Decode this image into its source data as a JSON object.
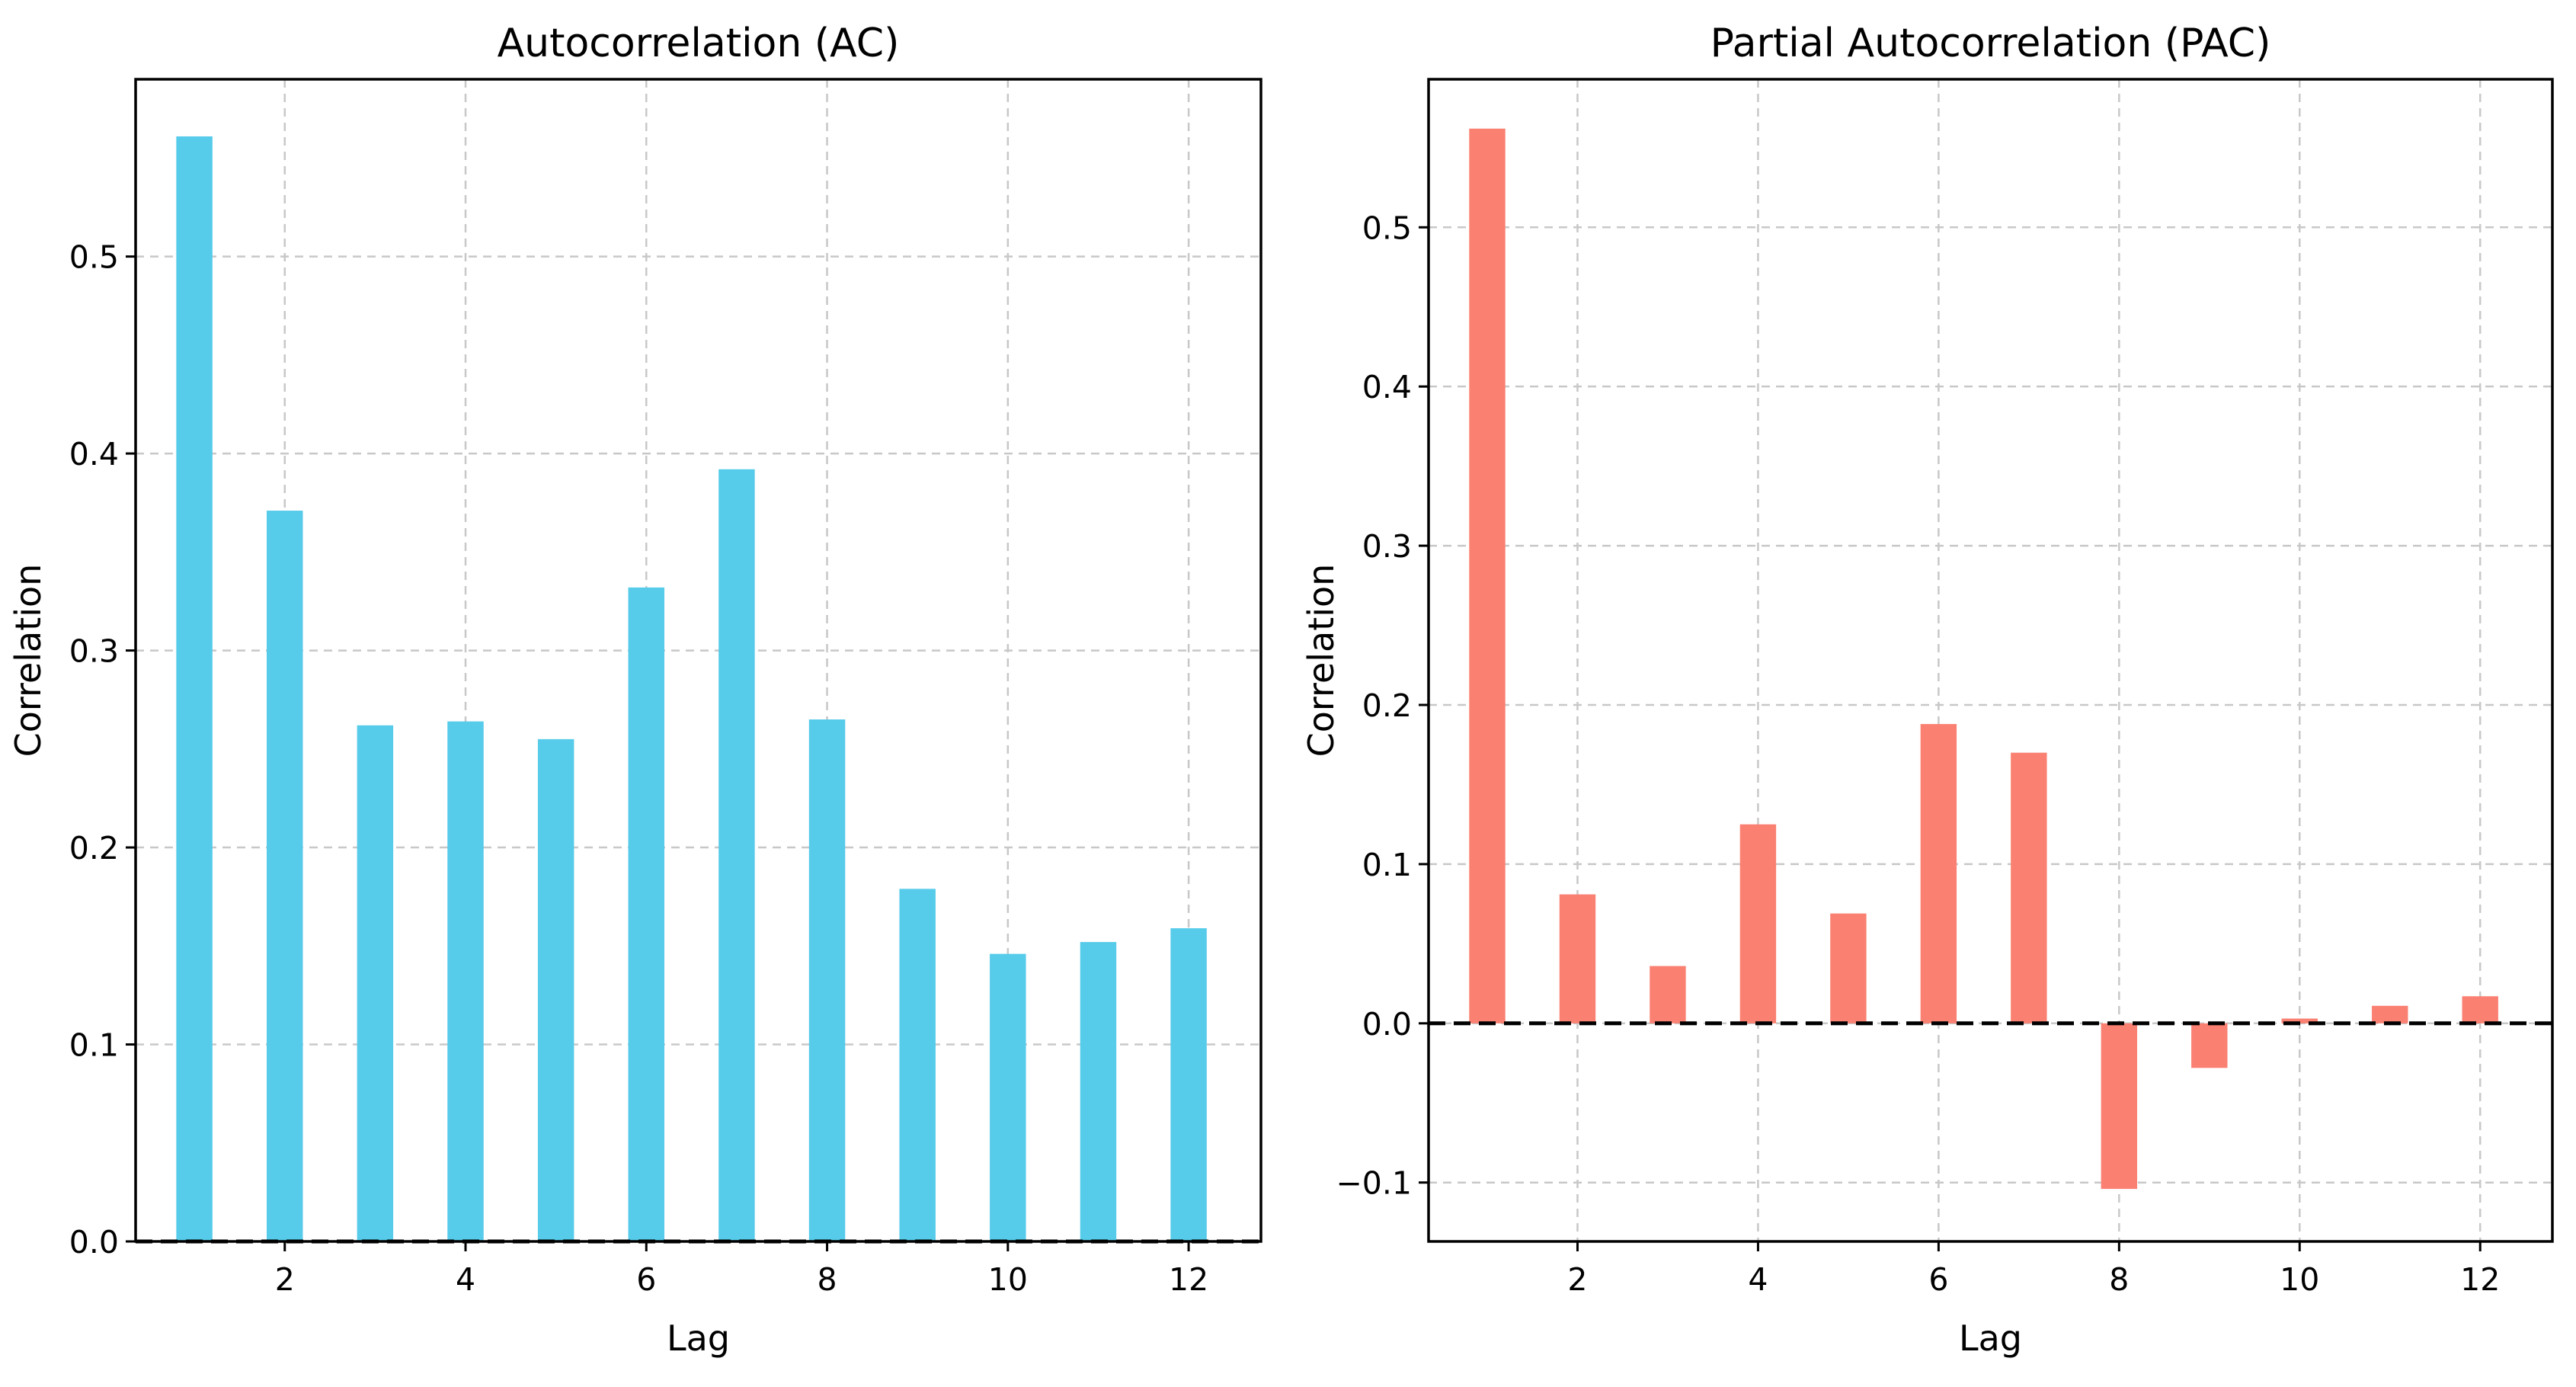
{
  "chart_data": [
    {
      "type": "bar",
      "title": "Autocorrelation (AC)",
      "xlabel": "Lag",
      "ylabel": "Correlation",
      "color": "#56cbea",
      "x": [
        1,
        2,
        3,
        4,
        5,
        6,
        7,
        8,
        9,
        10,
        11,
        12
      ],
      "values": [
        0.561,
        0.371,
        0.262,
        0.264,
        0.255,
        0.332,
        0.392,
        0.265,
        0.179,
        0.146,
        0.152,
        0.159
      ],
      "xticks": [
        2,
        4,
        6,
        8,
        10,
        12
      ],
      "xtick_labels": [
        "2",
        "4",
        "6",
        "8",
        "10",
        "12"
      ],
      "yticks": [
        0.0,
        0.1,
        0.2,
        0.3,
        0.4,
        0.5
      ],
      "ytick_labels": [
        "0.0",
        "0.1",
        "0.2",
        "0.3",
        "0.4",
        "0.5"
      ],
      "xlim": [
        0.35,
        12.8
      ],
      "ylim": [
        0.0,
        0.59
      ],
      "grid": true,
      "zero_line": true
    },
    {
      "type": "bar",
      "title": "Partial Autocorrelation (PAC)",
      "xlabel": "Lag",
      "ylabel": "Correlation",
      "color": "#fa8072",
      "x": [
        1,
        2,
        3,
        4,
        5,
        6,
        7,
        8,
        9,
        10,
        11,
        12
      ],
      "values": [
        0.562,
        0.081,
        0.036,
        0.125,
        0.069,
        0.188,
        0.17,
        -0.104,
        -0.028,
        0.003,
        0.011,
        0.017
      ],
      "xticks": [
        2,
        4,
        6,
        8,
        10,
        12
      ],
      "xtick_labels": [
        "2",
        "4",
        "6",
        "8",
        "10",
        "12"
      ],
      "yticks": [
        -0.1,
        0.0,
        0.1,
        0.2,
        0.3,
        0.4,
        0.5
      ],
      "ytick_labels": [
        "−0.1",
        "0.0",
        "0.1",
        "0.2",
        "0.3",
        "0.4",
        "0.5"
      ],
      "xlim": [
        0.35,
        12.8
      ],
      "ylim": [
        -0.137,
        0.593
      ],
      "grid": true,
      "zero_line": true
    }
  ]
}
